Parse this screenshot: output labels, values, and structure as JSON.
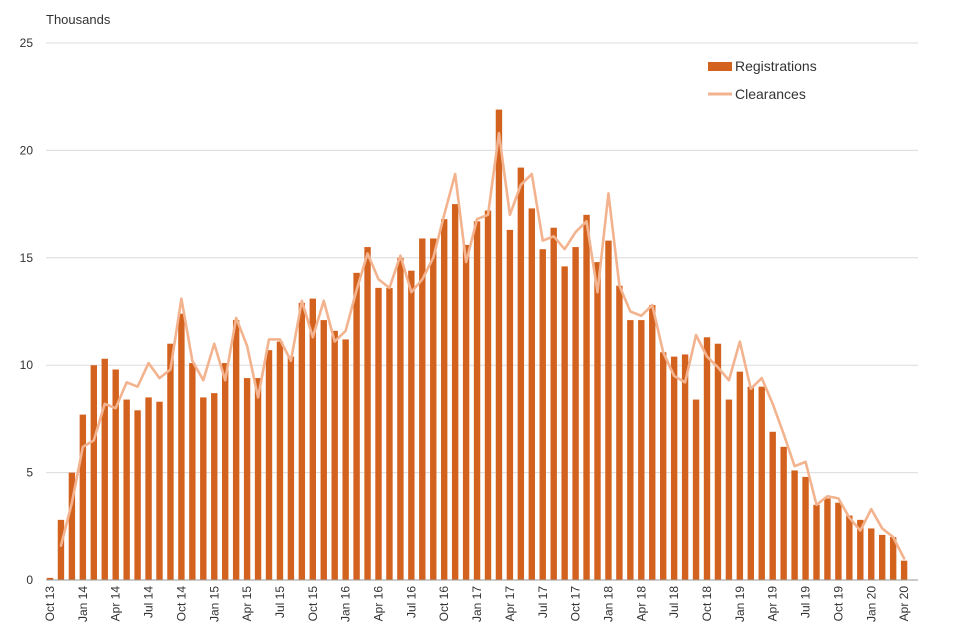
{
  "chart_data": {
    "type": "bar",
    "unit_label": "Thousands",
    "ylim": [
      0,
      25
    ],
    "y_ticks": [
      0,
      5,
      10,
      15,
      20,
      25
    ],
    "grid": true,
    "legend_position": "top-right",
    "x_tick_labels": [
      "Oct 13",
      "Jan 14",
      "Apr 14",
      "Jul 14",
      "Oct 14",
      "Jan 15",
      "Apr 15",
      "Jul 15",
      "Oct 15",
      "Jan 16",
      "Apr 16",
      "Jul 16",
      "Oct 16",
      "Jan 17",
      "Apr 17",
      "Jul 17",
      "Oct 17",
      "Jan 18",
      "Apr 18",
      "Jul 18",
      "Oct 18",
      "Jan 19",
      "Apr 19",
      "Jul 19",
      "Oct 19",
      "Jan 20",
      "Apr 20"
    ],
    "months": [
      "Oct 13",
      "Nov 13",
      "Dec 13",
      "Jan 14",
      "Feb 14",
      "Mar 14",
      "Apr 14",
      "May 14",
      "Jun 14",
      "Jul 14",
      "Aug 14",
      "Sep 14",
      "Oct 14",
      "Nov 14",
      "Dec 14",
      "Jan 15",
      "Feb 15",
      "Mar 15",
      "Apr 15",
      "May 15",
      "Jun 15",
      "Jul 15",
      "Aug 15",
      "Sep 15",
      "Oct 15",
      "Nov 15",
      "Dec 15",
      "Jan 16",
      "Feb 16",
      "Mar 16",
      "Apr 16",
      "May 16",
      "Jun 16",
      "Jul 16",
      "Aug 16",
      "Sep 16",
      "Oct 16",
      "Nov 16",
      "Dec 16",
      "Jan 17",
      "Feb 17",
      "Mar 17",
      "Apr 17",
      "May 17",
      "Jun 17",
      "Jul 17",
      "Aug 17",
      "Sep 17",
      "Oct 17",
      "Nov 17",
      "Dec 17",
      "Jan 18",
      "Feb 18",
      "Mar 18",
      "Apr 18",
      "May 18",
      "Jun 18",
      "Jul 18",
      "Aug 18",
      "Sep 18",
      "Oct 18",
      "Nov 18",
      "Dec 18",
      "Jan 19",
      "Feb 19",
      "Mar 19",
      "Apr 19",
      "May 19",
      "Jun 19",
      "Jul 19",
      "Aug 19",
      "Sep 19",
      "Oct 19",
      "Nov 19",
      "Dec 19",
      "Jan 20",
      "Feb 20",
      "Mar 20",
      "Apr 20"
    ],
    "series": [
      {
        "name": "Registrations",
        "kind": "bar",
        "color": "#d4621f",
        "values": [
          0.1,
          2.8,
          5.0,
          7.7,
          10.0,
          10.3,
          9.8,
          8.4,
          7.9,
          8.5,
          8.3,
          11.0,
          12.4,
          10.1,
          8.5,
          8.7,
          10.1,
          12.1,
          9.4,
          9.4,
          10.7,
          11.1,
          10.4,
          12.9,
          13.1,
          12.1,
          11.6,
          11.2,
          14.3,
          15.5,
          13.6,
          13.6,
          15.0,
          14.4,
          15.9,
          15.9,
          16.8,
          17.5,
          15.6,
          16.7,
          17.2,
          21.9,
          16.3,
          19.2,
          17.3,
          15.4,
          16.4,
          14.6,
          15.5,
          17.0,
          14.8,
          15.8,
          13.7,
          12.1,
          12.1,
          12.8,
          10.6,
          10.4,
          10.5,
          8.4,
          11.3,
          11.0,
          8.4,
          9.7,
          9.0,
          9.0,
          6.9,
          6.2,
          5.1,
          4.8,
          3.5,
          3.8,
          3.6,
          3.0,
          2.8,
          2.4,
          2.1,
          2.0,
          0.9
        ]
      },
      {
        "name": "Clearances",
        "kind": "line",
        "color": "#f2b38e",
        "values": [
          null,
          1.6,
          3.6,
          6.2,
          6.5,
          8.2,
          8.0,
          9.2,
          9.0,
          10.1,
          9.4,
          9.8,
          13.1,
          10.2,
          9.3,
          11.0,
          9.3,
          12.2,
          10.9,
          8.5,
          11.2,
          11.2,
          10.2,
          13.0,
          11.3,
          13.0,
          11.1,
          11.6,
          13.5,
          15.2,
          14.0,
          13.6,
          15.1,
          13.4,
          14.0,
          15.0,
          17.0,
          18.9,
          14.8,
          16.8,
          17.0,
          20.8,
          17.0,
          18.4,
          18.9,
          15.8,
          16.0,
          15.4,
          16.2,
          16.7,
          13.4,
          18.0,
          13.7,
          12.5,
          12.3,
          12.8,
          10.6,
          9.5,
          9.2,
          11.4,
          10.4,
          9.9,
          9.3,
          11.1,
          8.9,
          9.4,
          8.2,
          6.8,
          5.3,
          5.5,
          3.5,
          3.9,
          3.8,
          2.9,
          2.3,
          3.3,
          2.4,
          2.0,
          1.0
        ]
      }
    ]
  }
}
